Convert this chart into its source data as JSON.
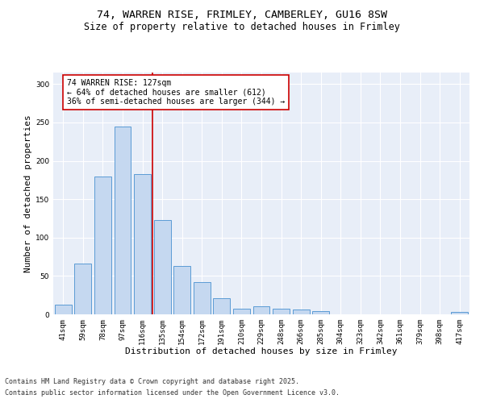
{
  "title_line1": "74, WARREN RISE, FRIMLEY, CAMBERLEY, GU16 8SW",
  "title_line2": "Size of property relative to detached houses in Frimley",
  "xlabel": "Distribution of detached houses by size in Frimley",
  "ylabel": "Number of detached properties",
  "categories": [
    "41sqm",
    "59sqm",
    "78sqm",
    "97sqm",
    "116sqm",
    "135sqm",
    "154sqm",
    "172sqm",
    "191sqm",
    "210sqm",
    "229sqm",
    "248sqm",
    "266sqm",
    "285sqm",
    "304sqm",
    "323sqm",
    "342sqm",
    "361sqm",
    "379sqm",
    "398sqm",
    "417sqm"
  ],
  "values": [
    13,
    66,
    180,
    245,
    183,
    123,
    63,
    42,
    21,
    7,
    10,
    7,
    6,
    4,
    0,
    0,
    0,
    0,
    0,
    0,
    3
  ],
  "bar_color": "#c5d8f0",
  "bar_edge_color": "#5b9bd5",
  "vline_x": 4.5,
  "vline_color": "#cc0000",
  "annotation_line1": "74 WARREN RISE: 127sqm",
  "annotation_line2": "← 64% of detached houses are smaller (612)",
  "annotation_line3": "36% of semi-detached houses are larger (344) →",
  "annotation_box_color": "#cc0000",
  "annotation_bg": "white",
  "ylim": [
    0,
    315
  ],
  "yticks": [
    0,
    50,
    100,
    150,
    200,
    250,
    300
  ],
  "background_color": "#e8eef8",
  "grid_color": "white",
  "footer_line1": "Contains HM Land Registry data © Crown copyright and database right 2025.",
  "footer_line2": "Contains public sector information licensed under the Open Government Licence v3.0.",
  "title_fontsize": 9.5,
  "subtitle_fontsize": 8.5,
  "xlabel_fontsize": 8,
  "ylabel_fontsize": 8,
  "tick_fontsize": 6.5,
  "ann_fontsize": 7,
  "footer_fontsize": 6
}
